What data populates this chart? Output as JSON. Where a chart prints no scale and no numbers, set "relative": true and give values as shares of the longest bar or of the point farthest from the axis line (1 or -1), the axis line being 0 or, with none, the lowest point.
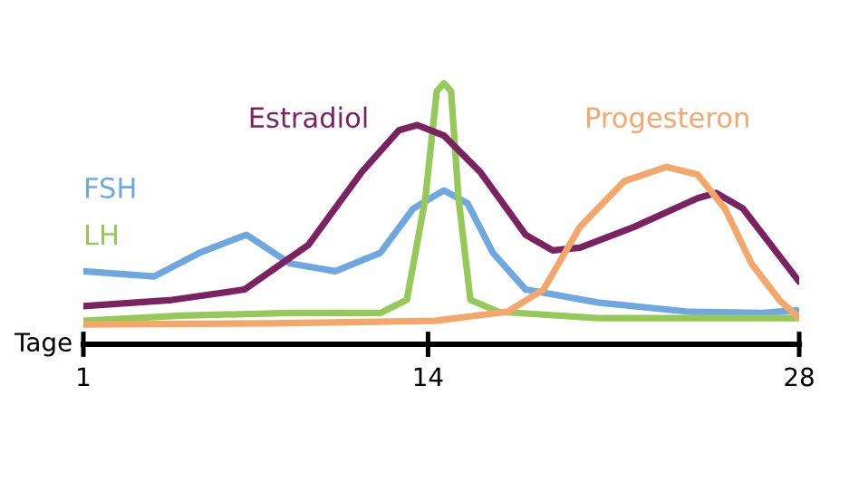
{
  "chart_data": {
    "type": "line",
    "relative": true,
    "xlabel": "Tage",
    "xlim": [
      1,
      28
    ],
    "xticks": [
      1,
      14,
      28
    ],
    "grid": false,
    "legend": false,
    "marker": "none",
    "line_style": "solid",
    "series": [
      {
        "name": "FSH",
        "color": "#6fa8e0",
        "x": [
          1,
          3.67,
          5.37,
          7.15,
          8.79,
          10.5,
          12.2,
          13.44,
          14.6,
          15.49,
          16.45,
          17.68,
          20.4,
          23.8,
          26.6,
          27.9
        ],
        "values": [
          0.28,
          0.26,
          0.35,
          0.42,
          0.31,
          0.28,
          0.35,
          0.52,
          0.59,
          0.54,
          0.35,
          0.21,
          0.16,
          0.125,
          0.12,
          0.13
        ]
      },
      {
        "name": "LH",
        "color": "#95c95a",
        "x": [
          1,
          4.69,
          8.79,
          12.2,
          13.2,
          13.9,
          14.33,
          14.6,
          14.87,
          15.15,
          15.6,
          16.65,
          20.4,
          28
        ],
        "values": [
          0.09,
          0.11,
          0.12,
          0.12,
          0.17,
          0.56,
          0.97,
          1,
          0.97,
          0.56,
          0.17,
          0.125,
          0.1,
          0.1
        ]
      },
      {
        "name": "Estradiol",
        "color": "#7b2263",
        "x": [
          1,
          4.35,
          7.08,
          9.48,
          11.5,
          12.9,
          13.6,
          14.6,
          15.97,
          17.68,
          18.7,
          19.73,
          21.78,
          24.17,
          24.86,
          25.88,
          28
        ],
        "values": [
          0.146,
          0.17,
          0.21,
          0.38,
          0.66,
          0.82,
          0.84,
          0.8,
          0.66,
          0.42,
          0.36,
          0.37,
          0.45,
          0.56,
          0.58,
          0.52,
          0.24
        ]
      },
      {
        "name": "Progesteron",
        "color": "#f5a66b",
        "x": [
          1,
          8.1,
          14.26,
          17,
          18.36,
          19.73,
          21.4,
          23,
          24.17,
          25.2,
          26.2,
          27.25,
          28
        ],
        "values": [
          0.076,
          0.08,
          0.09,
          0.125,
          0.21,
          0.45,
          0.625,
          0.68,
          0.65,
          0.52,
          0.31,
          0.17,
          0.1
        ]
      }
    ]
  }
}
